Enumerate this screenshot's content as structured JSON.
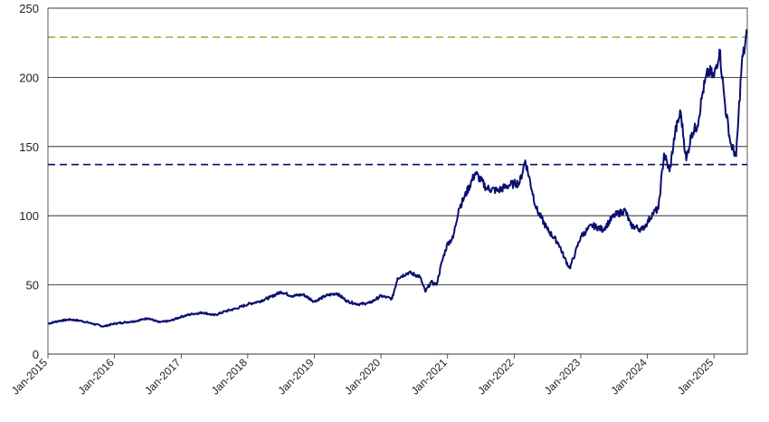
{
  "chart_data": {
    "type": "line",
    "title": "",
    "xlabel": "",
    "ylabel": "",
    "ylim": [
      0,
      250
    ],
    "yticks": [
      "0",
      "50",
      "100",
      "150",
      "200",
      "250"
    ],
    "xlim": [
      "2015-01",
      "2025-07"
    ],
    "xticks": [
      "Jan-2015",
      "Jan-2016",
      "Jan-2017",
      "Jan-2018",
      "Jan-2019",
      "Jan-2020",
      "Jan-2021",
      "Jan-2022",
      "Jan-2023",
      "Jan-2024",
      "Jan-2025"
    ],
    "grid": "horizontal",
    "series": [
      {
        "color": "#0a0f6e",
        "x": [
          "2015-01",
          "2015-03",
          "2015-05",
          "2015-07",
          "2015-09",
          "2015-11",
          "2016-01",
          "2016-03",
          "2016-05",
          "2016-07",
          "2016-09",
          "2016-11",
          "2017-01",
          "2017-03",
          "2017-05",
          "2017-07",
          "2017-09",
          "2017-11",
          "2018-01",
          "2018-03",
          "2018-05",
          "2018-07",
          "2018-09",
          "2018-11",
          "2019-01",
          "2019-03",
          "2019-05",
          "2019-07",
          "2019-09",
          "2019-11",
          "2020-01",
          "2020-02",
          "2020-03",
          "2020-04",
          "2020-06",
          "2020-08",
          "2020-09",
          "2020-10",
          "2020-11",
          "2020-12",
          "2021-01",
          "2021-02",
          "2021-03",
          "2021-04",
          "2021-06",
          "2021-08",
          "2021-10",
          "2021-12",
          "2022-01",
          "2022-02",
          "2022-03",
          "2022-05",
          "2022-07",
          "2022-09",
          "2022-10",
          "2022-11",
          "2022-12",
          "2023-01",
          "2023-03",
          "2023-05",
          "2023-07",
          "2023-09",
          "2023-10",
          "2023-12",
          "2024-01",
          "2024-02",
          "2024-03",
          "2024-04",
          "2024-05",
          "2024-06",
          "2024-07",
          "2024-08",
          "2024-09",
          "2024-10",
          "2024-11",
          "2024-12",
          "2025-01",
          "2025-02",
          "2025-03",
          "2025-04",
          "2025-05",
          "2025-06",
          "2025-07"
        ],
        "values": [
          22,
          24,
          25,
          24,
          22,
          20,
          22,
          23,
          24,
          26,
          23,
          24,
          27,
          29,
          30,
          28,
          31,
          33,
          36,
          38,
          41,
          45,
          42,
          43,
          38,
          42,
          44,
          38,
          36,
          37,
          42,
          41,
          40,
          55,
          59,
          56,
          45,
          52,
          50,
          67,
          80,
          84,
          105,
          113,
          131,
          120,
          118,
          122,
          123,
          124,
          140,
          105,
          90,
          80,
          70,
          62,
          73,
          85,
          93,
          90,
          100,
          104,
          93,
          90,
          95,
          102,
          105,
          145,
          132,
          160,
          175,
          140,
          160,
          165,
          190,
          205,
          200,
          220,
          180,
          152,
          143,
          210,
          232
        ]
      }
    ],
    "reference_lines": [
      {
        "value": 229,
        "style": "dashed",
        "color": "#8cbf44"
      },
      {
        "value": 137,
        "style": "dashed",
        "color": "#0a0f6e"
      }
    ]
  }
}
